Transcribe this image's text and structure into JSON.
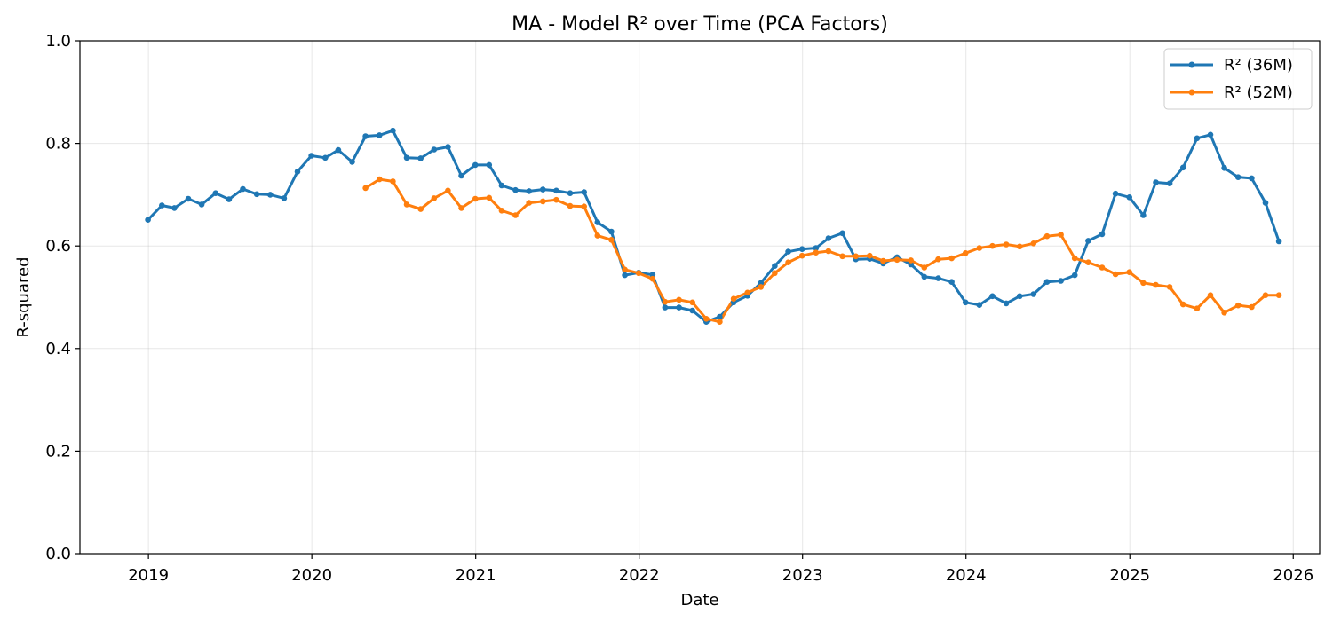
{
  "chart_data": {
    "type": "line",
    "title": "MA - Model R² over Time (PCA Factors)",
    "xlabel": "Date",
    "ylabel": "R-squared",
    "xlim": [
      "2018-08-01",
      "2026-03-01"
    ],
    "ylim": [
      0,
      1
    ],
    "grid": true,
    "legend_position": "top-right",
    "x_ticks": [
      {
        "date": "2019-01-01",
        "label": "2019"
      },
      {
        "date": "2020-01-01",
        "label": "2020"
      },
      {
        "date": "2021-01-01",
        "label": "2021"
      },
      {
        "date": "2022-01-01",
        "label": "2022"
      },
      {
        "date": "2023-01-01",
        "label": "2023"
      },
      {
        "date": "2024-01-01",
        "label": "2024"
      },
      {
        "date": "2025-01-01",
        "label": "2025"
      },
      {
        "date": "2026-01-01",
        "label": "2026"
      }
    ],
    "y_ticks": [
      {
        "value": 0,
        "label": "0.0"
      },
      {
        "value": 0.2,
        "label": "0.2"
      },
      {
        "value": 0.4,
        "label": "0.4"
      },
      {
        "value": 0.6,
        "label": "0.6"
      },
      {
        "value": 0.8,
        "label": "0.8"
      },
      {
        "value": 1.0,
        "label": "1.0"
      }
    ],
    "series": [
      {
        "name": "R² (36M)",
        "color": "#1f77b4",
        "start": "2018-11-30",
        "values": [
          0.651,
          0.679,
          0.674,
          0.692,
          0.681,
          0.703,
          0.691,
          0.711,
          0.701,
          0.7,
          0.693,
          0.745,
          0.776,
          0.772,
          0.787,
          0.764,
          0.814,
          0.816,
          0.825,
          0.772,
          0.771,
          0.788,
          0.793,
          0.737,
          0.758,
          0.758,
          0.718,
          0.709,
          0.707,
          0.71,
          0.708,
          0.703,
          0.705,
          0.646,
          0.628,
          0.543,
          0.548,
          0.544,
          0.48,
          0.48,
          0.474,
          0.452,
          0.462,
          0.49,
          0.503,
          0.528,
          0.561,
          0.589,
          0.594,
          0.596,
          0.615,
          0.625,
          0.574,
          0.575,
          0.566,
          0.578,
          0.564,
          0.54,
          0.537,
          0.53,
          0.49,
          0.485,
          0.502,
          0.488,
          0.502,
          0.506,
          0.53,
          0.532,
          0.543,
          0.61,
          0.623,
          0.702,
          0.695,
          0.66,
          0.724,
          0.722,
          0.753,
          0.81,
          0.817,
          0.752,
          0.734,
          0.732,
          0.684,
          0.609
        ]
      },
      {
        "name": "R² (52M)",
        "color": "#ff7f0e",
        "start": "2020-03-31",
        "values": [
          0.713,
          0.73,
          0.726,
          0.681,
          0.672,
          0.693,
          0.708,
          0.674,
          0.692,
          0.694,
          0.669,
          0.66,
          0.684,
          0.687,
          0.69,
          0.678,
          0.677,
          0.62,
          0.612,
          0.554,
          0.547,
          0.536,
          0.491,
          0.495,
          0.49,
          0.458,
          0.452,
          0.497,
          0.509,
          0.52,
          0.547,
          0.568,
          0.581,
          0.587,
          0.59,
          0.58,
          0.58,
          0.581,
          0.571,
          0.573,
          0.572,
          0.558,
          0.574,
          0.576,
          0.586,
          0.596,
          0.6,
          0.603,
          0.599,
          0.605,
          0.619,
          0.622,
          0.576,
          0.568,
          0.558,
          0.545,
          0.549,
          0.528,
          0.524,
          0.52,
          0.486,
          0.478,
          0.504,
          0.47,
          0.484,
          0.481,
          0.504,
          0.504
        ]
      }
    ]
  }
}
